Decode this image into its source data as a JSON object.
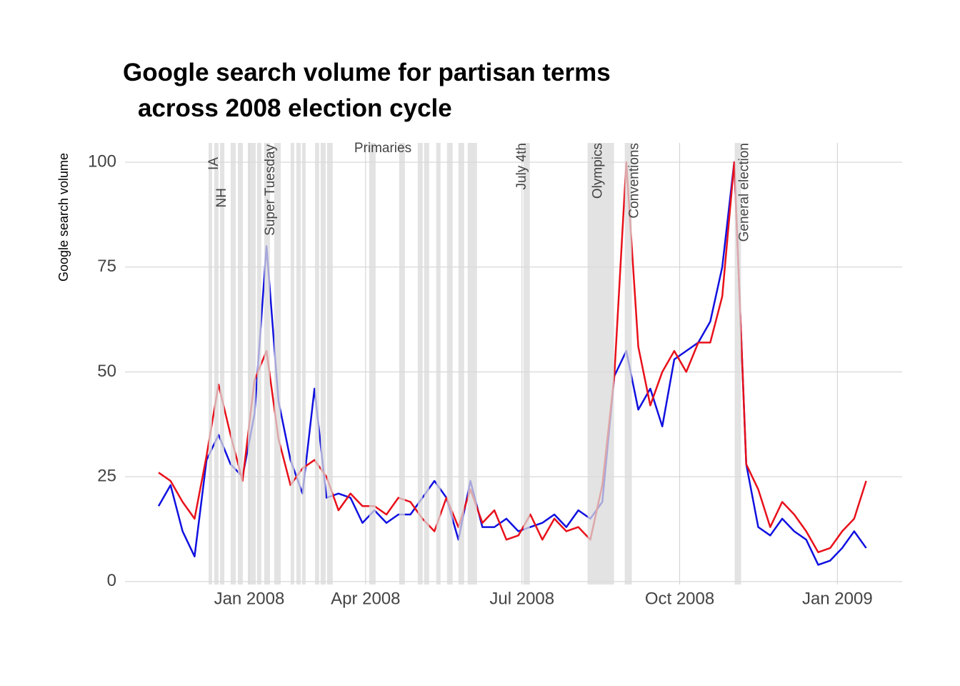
{
  "chart_data": {
    "type": "line",
    "title": [
      "Google search volume for partisan terms",
      "across 2008 election cycle"
    ],
    "y_label": "Google search volume",
    "x": [
      0,
      1,
      2,
      3,
      4,
      5,
      6,
      7,
      8,
      9,
      10,
      11,
      12,
      13,
      14,
      15,
      16,
      17,
      18,
      19,
      20,
      21,
      22,
      23,
      24,
      25,
      26,
      27,
      28,
      29,
      30,
      31,
      32,
      33,
      34,
      35,
      36,
      37,
      38,
      39,
      40,
      41,
      42,
      43,
      44,
      45,
      46,
      47,
      48,
      49,
      50,
      51,
      52,
      53,
      54,
      55,
      56,
      57,
      58,
      59
    ],
    "series": [
      {
        "color": "#1010e0",
        "values": [
          18,
          23,
          12,
          6,
          29,
          35,
          28,
          25,
          40,
          80,
          43,
          29,
          21,
          46,
          20,
          21,
          20,
          14,
          17,
          14,
          16,
          16,
          20,
          24,
          20,
          10,
          24,
          13,
          13,
          15,
          12,
          13,
          14,
          16,
          13,
          17,
          15,
          19,
          49,
          55,
          41,
          46,
          37,
          53,
          55,
          57,
          62,
          75,
          100,
          28,
          13,
          11,
          15,
          12,
          10,
          4,
          5,
          8,
          12,
          8
        ]
      },
      {
        "color": "#e8101a",
        "values": [
          26,
          24,
          19,
          15,
          30,
          47,
          35,
          24,
          48,
          55,
          34,
          23,
          27,
          29,
          25,
          17,
          21,
          18,
          18,
          16,
          20,
          19,
          15,
          12,
          20,
          13,
          22,
          14,
          17,
          10,
          11,
          16,
          10,
          15,
          12,
          13,
          10,
          23,
          49,
          100,
          56,
          42,
          50,
          55,
          50,
          57,
          57,
          68,
          100,
          28,
          22,
          13,
          19,
          16,
          12,
          7,
          8,
          12,
          15,
          24
        ]
      }
    ],
    "bands": [
      [
        4.17,
        4.46
      ],
      [
        4.64,
        5.0
      ],
      [
        5.12,
        5.48
      ],
      [
        6.01,
        6.43
      ],
      [
        6.61,
        7.02
      ],
      [
        7.44,
        8.1
      ],
      [
        8.21,
        8.57
      ],
      [
        8.81,
        9.29
      ],
      [
        9.64,
        10.18
      ],
      [
        11.01,
        11.31
      ],
      [
        11.49,
        11.85
      ],
      [
        11.96,
        12.26
      ],
      [
        13.04,
        13.39
      ],
      [
        13.51,
        13.93
      ],
      [
        14.05,
        14.52
      ],
      [
        17.56,
        18.1
      ],
      [
        20.06,
        20.54
      ],
      [
        21.61,
        22.02
      ],
      [
        22.14,
        22.56
      ],
      [
        23.15,
        23.51
      ],
      [
        24.05,
        24.52
      ],
      [
        25.0,
        25.48
      ],
      [
        25.77,
        26.55
      ],
      [
        30.42,
        30.95
      ],
      [
        35.77,
        37.98
      ],
      [
        38.87,
        39.46
      ],
      [
        48.04,
        48.57
      ]
    ],
    "band_color": "#d9d9d9",
    "annotations": [
      {
        "text": "IA",
        "x": 4.64
      },
      {
        "text": "NH",
        "x": 5.3
      },
      {
        "text": "Super Tuesday",
        "x": 9.35
      },
      {
        "text": "Primaries",
        "x": 18.7
      },
      {
        "text": "July 4th",
        "x": 30.3
      },
      {
        "text": "Olympics",
        "x": 36.67
      },
      {
        "text": "Conventions",
        "x": 39.7
      },
      {
        "text": "General election",
        "x": 48.87
      }
    ],
    "xlim": [
      -2.8,
      62
    ],
    "xticks": [
      {
        "value": 7.56,
        "label": "Jan 2008"
      },
      {
        "value": 17.26,
        "label": "Apr 2008"
      },
      {
        "value": 30.3,
        "label": "Jul 2008"
      },
      {
        "value": 43.45,
        "label": "Oct 2008"
      },
      {
        "value": 56.6,
        "label": "Jan 2009"
      }
    ],
    "ylim": [
      -0.7,
      104.6
    ],
    "yticks": [
      0,
      25,
      50,
      75,
      100
    ],
    "grid": true
  }
}
